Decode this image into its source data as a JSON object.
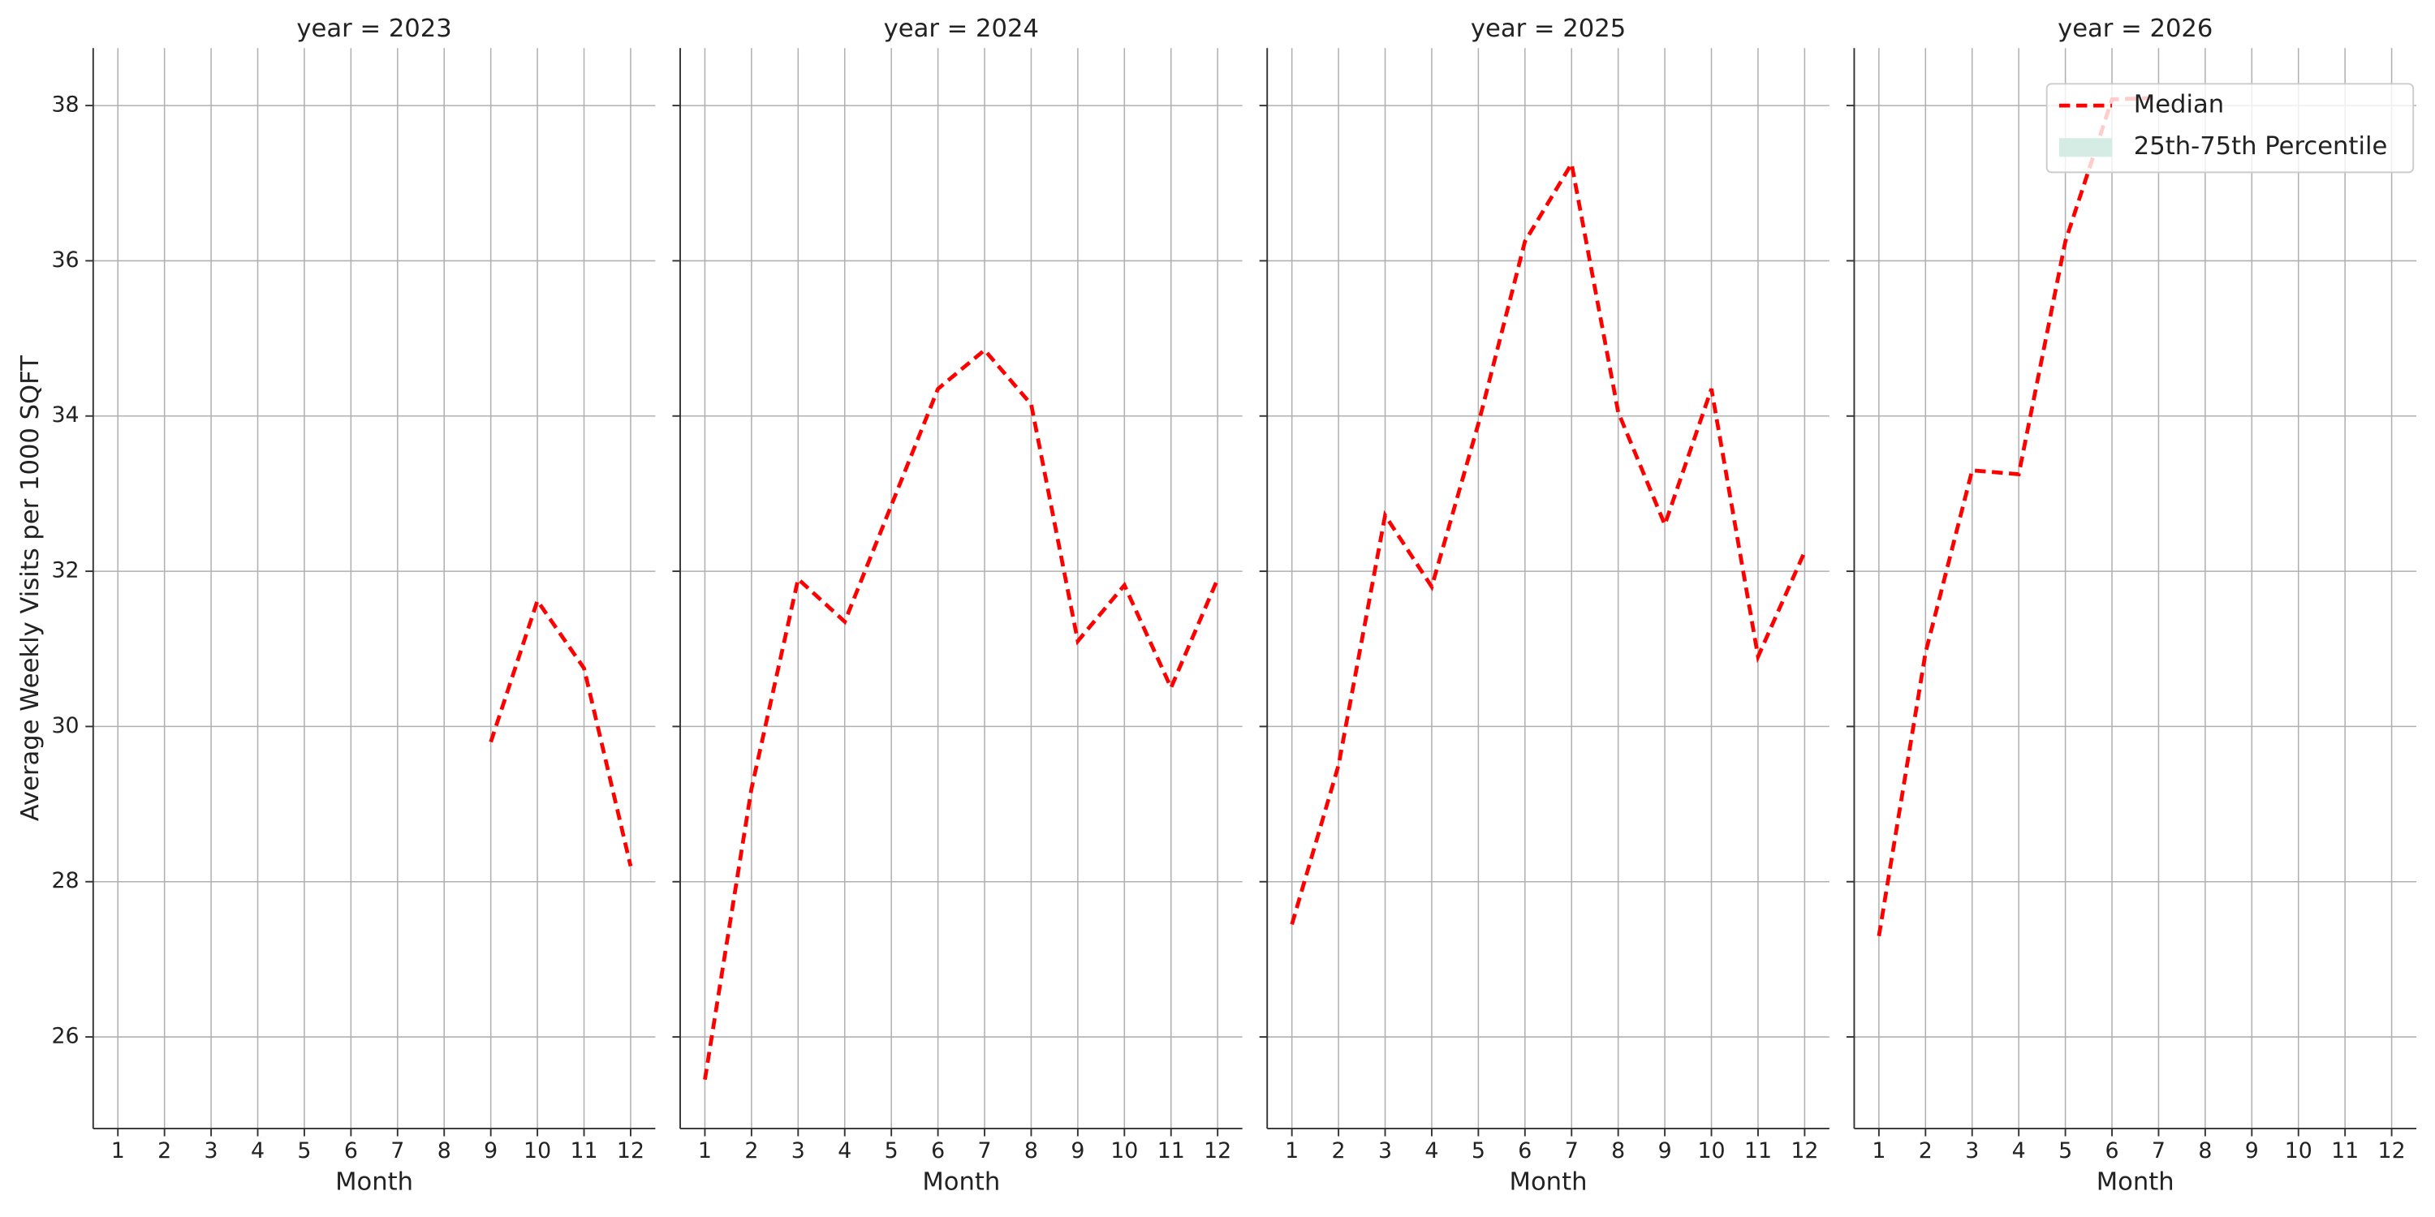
{
  "chart_data": [
    {
      "type": "line",
      "title": "year = 2023",
      "xlabel": "Month",
      "ylabel": "Average Weekly Visits per 1000 SQFT",
      "x": [
        1,
        2,
        3,
        4,
        5,
        6,
        7,
        8,
        9,
        10,
        11,
        12
      ],
      "series": [
        {
          "name": "Median",
          "color": "#ff0000",
          "values": [
            null,
            null,
            null,
            null,
            null,
            null,
            null,
            null,
            29.8,
            31.62,
            30.75,
            28.2
          ]
        }
      ],
      "xlim": [
        0.47,
        12.53
      ],
      "xticks": [
        1,
        2,
        3,
        4,
        5,
        6,
        7,
        8,
        9,
        10,
        11,
        12
      ],
      "ylim": [
        24.82,
        38.74
      ],
      "yticks": [
        26,
        28,
        30,
        32,
        34,
        36,
        38
      ],
      "grid": true
    },
    {
      "type": "line",
      "title": "year = 2024",
      "xlabel": "Month",
      "x": [
        1,
        2,
        3,
        4,
        5,
        6,
        7,
        8,
        9,
        10,
        11,
        12
      ],
      "series": [
        {
          "name": "Median",
          "color": "#ff0000",
          "values": [
            25.45,
            29.2,
            31.9,
            31.35,
            32.85,
            34.35,
            34.85,
            34.15,
            31.1,
            31.82,
            30.5,
            31.9
          ]
        }
      ],
      "xlim": [
        0.47,
        12.53
      ],
      "xticks": [
        1,
        2,
        3,
        4,
        5,
        6,
        7,
        8,
        9,
        10,
        11,
        12
      ],
      "ylim": [
        24.82,
        38.74
      ],
      "yticks": [
        26,
        28,
        30,
        32,
        34,
        36,
        38
      ],
      "grid": true
    },
    {
      "type": "line",
      "title": "year = 2025",
      "xlabel": "Month",
      "x": [
        1,
        2,
        3,
        4,
        5,
        6,
        7,
        8,
        9,
        10,
        11,
        12
      ],
      "series": [
        {
          "name": "Median",
          "color": "#ff0000",
          "values": [
            27.45,
            29.5,
            32.72,
            31.8,
            33.9,
            36.25,
            37.25,
            34.05,
            32.6,
            34.35,
            30.9,
            32.25
          ]
        }
      ],
      "xlim": [
        0.47,
        12.53
      ],
      "xticks": [
        1,
        2,
        3,
        4,
        5,
        6,
        7,
        8,
        9,
        10,
        11,
        12
      ],
      "ylim": [
        24.82,
        38.74
      ],
      "yticks": [
        26,
        28,
        30,
        32,
        34,
        36,
        38
      ],
      "grid": true
    },
    {
      "type": "line",
      "title": "year = 2026",
      "xlabel": "Month",
      "x": [
        1,
        2,
        3,
        4,
        5,
        6,
        7,
        8,
        9,
        10,
        11,
        12
      ],
      "series": [
        {
          "name": "Median",
          "color": "#ff0000",
          "values": [
            27.3,
            30.95,
            33.3,
            33.25,
            36.25,
            38.08,
            38.1,
            null,
            null,
            null,
            null,
            null
          ]
        },
        {
          "name": "25th-75th Percentile",
          "color": "#d4ece3",
          "values": [
            null,
            null,
            null,
            null,
            null,
            null,
            null,
            null,
            null,
            null,
            null,
            null
          ]
        }
      ],
      "xlim": [
        0.47,
        12.53
      ],
      "xticks": [
        1,
        2,
        3,
        4,
        5,
        6,
        7,
        8,
        9,
        10,
        11,
        12
      ],
      "ylim": [
        24.82,
        38.74
      ],
      "yticks": [
        26,
        28,
        30,
        32,
        34,
        36,
        38
      ],
      "grid": true,
      "legend": "upper right"
    }
  ]
}
